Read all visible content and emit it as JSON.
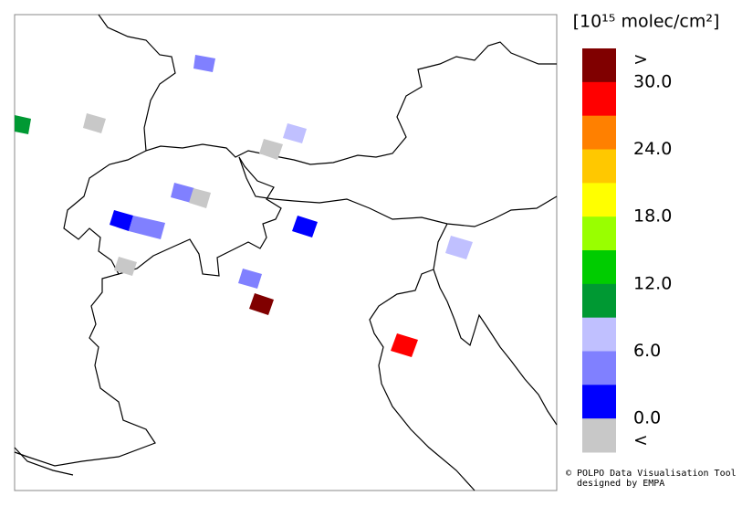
{
  "legend": {
    "title": "[10¹⁵ molec/cm²]",
    "colors": [
      "#800000",
      "#ff0000",
      "#ff8000",
      "#ffc800",
      "#ffff00",
      "#99ff00",
      "#00cc00",
      "#009933",
      "#c0c0ff",
      "#8080ff",
      "#0000ff",
      "#c8c8c8"
    ],
    "labels": [
      ">",
      "30.0",
      "24.0",
      "18.0",
      "12.0",
      "6.0",
      "0.0",
      "<"
    ]
  },
  "footer": {
    "line1": "© POLPO Data Visualisation Tool",
    "line2": "designed by EMPA"
  }
}
